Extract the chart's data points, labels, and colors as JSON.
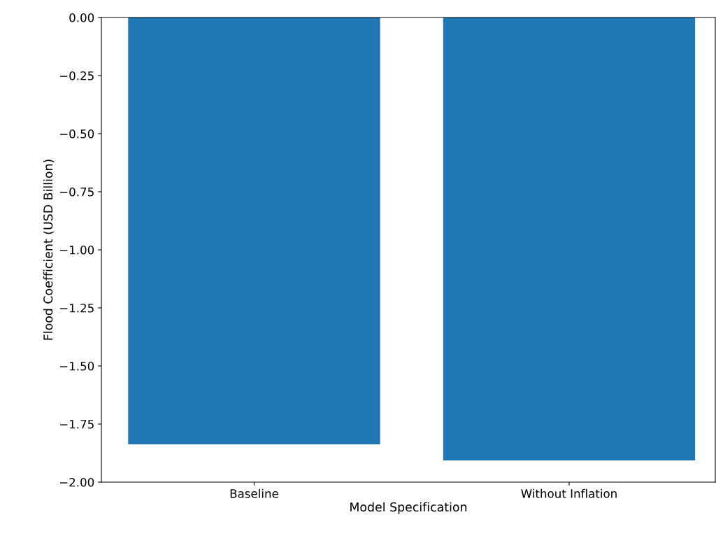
{
  "chart_data": {
    "type": "bar",
    "xlabel": "Model Specification",
    "ylabel": "Flood Coefficient (USD Billion)",
    "categories": [
      "Baseline",
      "Without Inflation"
    ],
    "values": [
      -1.837,
      -1.907
    ],
    "color": "#1f77b4",
    "ylim": [
      -2.0,
      0.0
    ],
    "yticks": [
      {
        "value": -2.0,
        "label": "−2.00"
      },
      {
        "value": -1.75,
        "label": "−1.75"
      },
      {
        "value": -1.5,
        "label": "−1.50"
      },
      {
        "value": -1.25,
        "label": "−1.25"
      },
      {
        "value": -1.0,
        "label": "−1.00"
      },
      {
        "value": -0.75,
        "label": "−0.75"
      },
      {
        "value": -0.5,
        "label": "−0.50"
      },
      {
        "value": -0.25,
        "label": "−0.25"
      },
      {
        "value": 0.0,
        "label": "0.00"
      }
    ],
    "grid": false
  }
}
